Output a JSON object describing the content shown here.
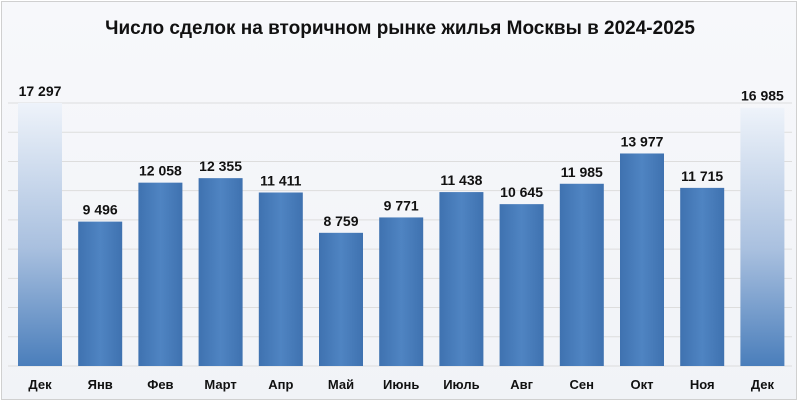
{
  "chart_data": {
    "type": "bar",
    "title": "Число сделок на вторичном рынке жилья Москвы в 2024-2025",
    "xlabel": "",
    "ylabel": "",
    "categories": [
      "Дек",
      "Янв",
      "Фев",
      "Март",
      "Апр",
      "Май",
      "Июнь",
      "Июль",
      "Авг",
      "Сен",
      "Окт",
      "Ноя",
      "Дек"
    ],
    "values": [
      17297,
      9496,
      12058,
      12355,
      11411,
      8759,
      9771,
      11438,
      10645,
      11985,
      13977,
      11715,
      16985
    ],
    "value_labels": [
      "17 297",
      "9 496",
      "12 058",
      "12 355",
      "11 411",
      "8 759",
      "9 771",
      "11 438",
      "10 645",
      "11 985",
      "13 977",
      "11 715",
      "16 985"
    ],
    "ylim": [
      0,
      17297
    ],
    "grid": true,
    "colors": {
      "bar": "#4a7ebb",
      "highlight_top": "#dbe5f1",
      "highlight_bottom": "#4a7ebb",
      "gridline": "#dddddd"
    },
    "highlighted_categories_index": [
      0,
      12
    ]
  }
}
